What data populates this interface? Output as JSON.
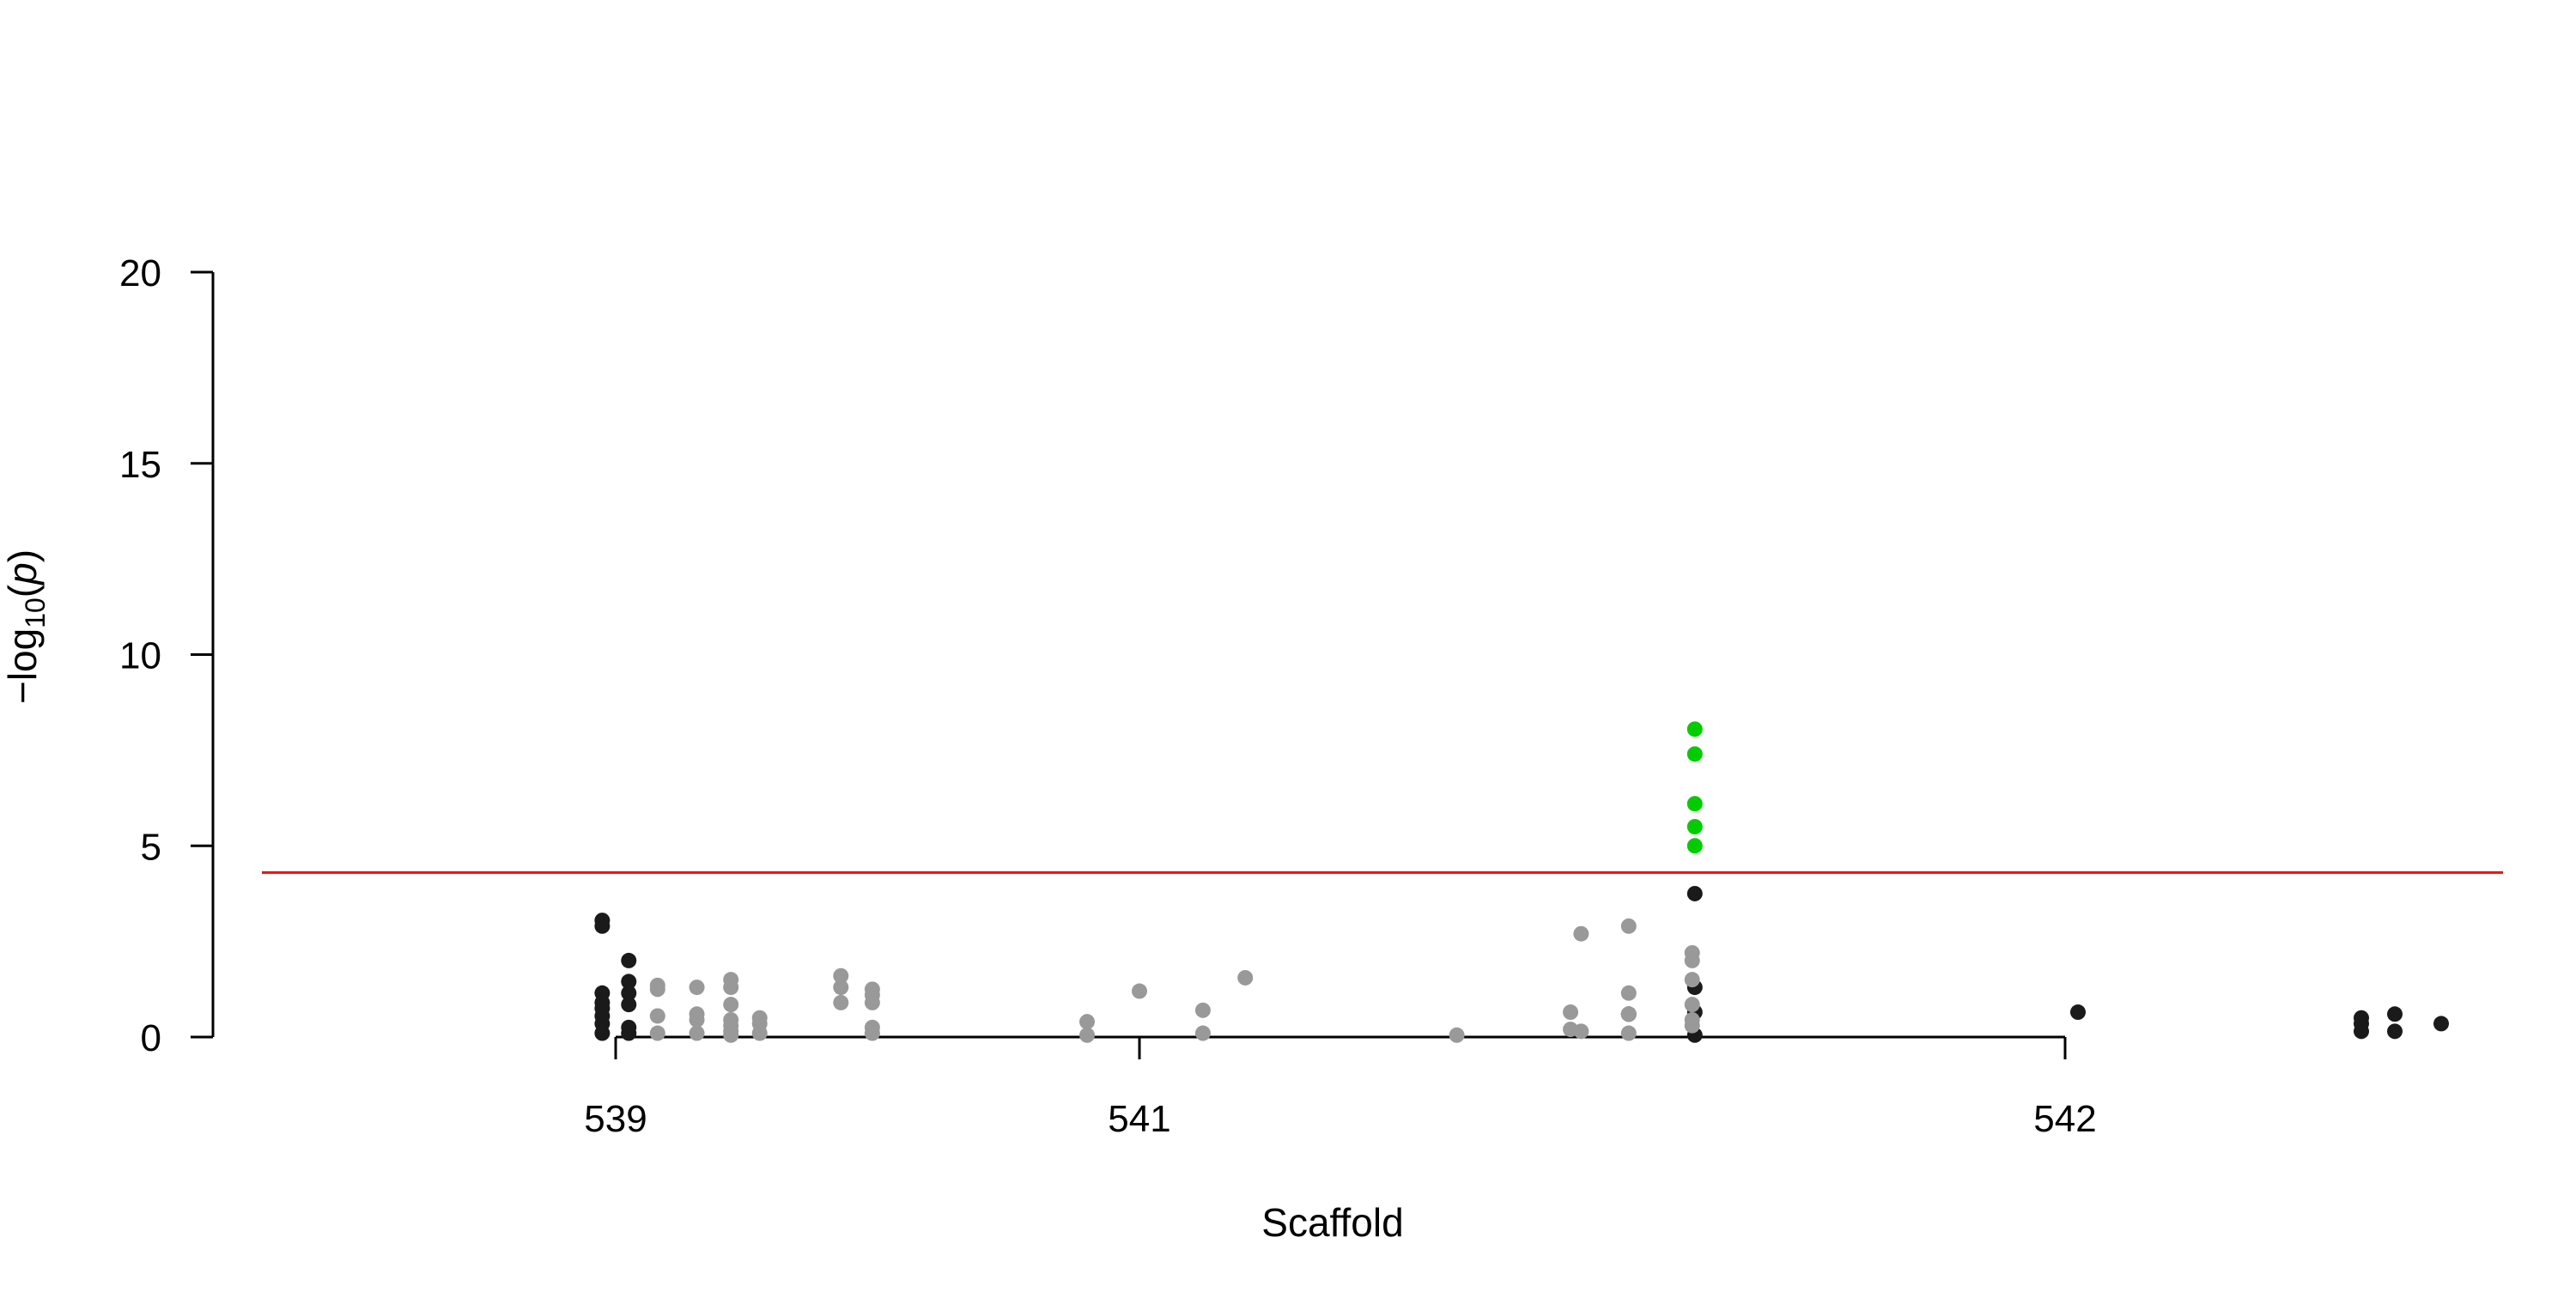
{
  "chart_data": {
    "type": "scatter",
    "title": "",
    "xlabel": "Scaffold",
    "ylabel": {
      "prefix": "−log",
      "subscript": "10",
      "open": "(",
      "var": "p",
      "close": ")"
    },
    "ylim": [
      0,
      20
    ],
    "y_ticks": [
      0,
      5,
      10,
      15,
      20
    ],
    "x_tick_labels": [
      "539",
      "541",
      "542"
    ],
    "x_tick_positions": [
      2.0,
      4.0,
      7.5
    ],
    "xlim": [
      0.5,
      9.2
    ],
    "threshold": {
      "value": 4.3,
      "color": "#ff0000"
    },
    "colors": {
      "dark": "#1a1a1a",
      "light": "#999999",
      "significant": "#00cc00"
    },
    "series": [
      {
        "color_key": "dark",
        "points": [
          [
            1.95,
            3.05
          ],
          [
            1.95,
            2.9
          ],
          [
            1.95,
            1.15
          ],
          [
            1.95,
            0.9
          ],
          [
            1.95,
            0.75
          ],
          [
            1.95,
            0.55
          ],
          [
            1.95,
            0.35
          ],
          [
            1.95,
            0.1
          ],
          [
            2.05,
            2.0
          ],
          [
            2.05,
            1.45
          ],
          [
            2.05,
            1.15
          ],
          [
            2.05,
            0.85
          ],
          [
            2.05,
            0.25
          ],
          [
            2.05,
            0.1
          ],
          [
            6.1,
            3.75
          ],
          [
            6.1,
            1.3
          ],
          [
            6.1,
            0.65
          ],
          [
            6.1,
            0.05
          ],
          [
            7.55,
            0.65
          ],
          [
            8.65,
            0.5
          ],
          [
            8.65,
            0.35
          ],
          [
            8.65,
            0.15
          ],
          [
            8.78,
            0.6
          ],
          [
            8.78,
            0.15
          ],
          [
            8.96,
            0.35
          ]
        ]
      },
      {
        "color_key": "light",
        "points": [
          [
            2.16,
            1.35
          ],
          [
            2.16,
            1.25
          ],
          [
            2.16,
            0.55
          ],
          [
            2.16,
            0.1
          ],
          [
            2.31,
            1.3
          ],
          [
            2.31,
            0.6
          ],
          [
            2.31,
            0.45
          ],
          [
            2.31,
            0.1
          ],
          [
            2.44,
            1.5
          ],
          [
            2.44,
            1.3
          ],
          [
            2.44,
            0.85
          ],
          [
            2.44,
            0.45
          ],
          [
            2.44,
            0.3
          ],
          [
            2.44,
            0.15
          ],
          [
            2.44,
            0.05
          ],
          [
            2.55,
            0.5
          ],
          [
            2.55,
            0.35
          ],
          [
            2.55,
            0.1
          ],
          [
            2.86,
            1.6
          ],
          [
            2.86,
            1.3
          ],
          [
            2.86,
            0.9
          ],
          [
            2.98,
            1.25
          ],
          [
            2.98,
            1.1
          ],
          [
            2.98,
            0.9
          ],
          [
            2.98,
            0.25
          ],
          [
            2.98,
            0.1
          ],
          [
            3.8,
            0.4
          ],
          [
            3.8,
            0.05
          ],
          [
            4.0,
            1.2
          ],
          [
            4.24,
            0.7
          ],
          [
            4.24,
            0.1
          ],
          [
            4.4,
            1.55
          ],
          [
            5.2,
            0.05
          ],
          [
            5.63,
            0.65
          ],
          [
            5.63,
            0.2
          ],
          [
            5.67,
            2.7
          ],
          [
            5.67,
            0.15
          ],
          [
            5.85,
            2.9
          ],
          [
            5.85,
            1.15
          ],
          [
            5.85,
            0.6
          ],
          [
            5.85,
            0.1
          ],
          [
            5.85,
            0.6
          ],
          [
            5.85,
            0.6
          ],
          [
            5.85,
            0.6
          ],
          [
            5.85,
            0.6
          ],
          [
            5.85,
            0.6
          ],
          [
            5.85,
            0.6
          ],
          [
            5.85,
            0.6
          ],
          [
            5.85,
            0.6
          ],
          [
            5.85,
            0.6
          ],
          [
            6.09,
            2.2
          ],
          [
            6.09,
            2.0
          ],
          [
            6.09,
            1.5
          ],
          [
            6.09,
            0.85
          ],
          [
            6.09,
            0.45
          ],
          [
            6.09,
            0.3
          ]
        ]
      },
      {
        "color_key": "significant",
        "points": [
          [
            6.1,
            8.05
          ],
          [
            6.1,
            7.4
          ],
          [
            6.1,
            6.1
          ],
          [
            6.1,
            5.5
          ],
          [
            6.1,
            5.0
          ]
        ]
      }
    ]
  }
}
